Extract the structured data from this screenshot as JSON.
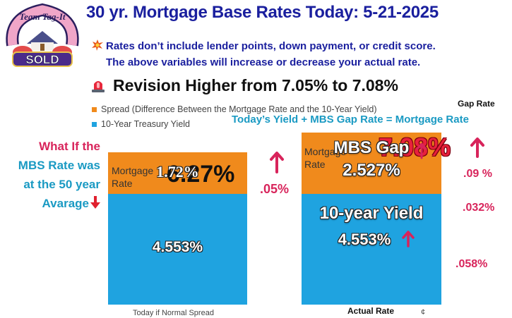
{
  "title": "30 yr. Mortgage Base Rates Today: 5-21-2025",
  "logo": {
    "icon": "team-tag-it-sold-logo",
    "text_top": "Team Tag-It",
    "text_sold": "SOLD"
  },
  "notes": {
    "line1_icon": "burst-icon",
    "line1": "Rates don’t include lender points, down payment, or credit score.",
    "line2": "The above variables will increase or decrease your actual rate."
  },
  "revision": {
    "icon": "siren-icon",
    "text": "Revision Higher from 7.05% to 7.08%"
  },
  "gap_rate_heading": "Gap Rate",
  "formula": "Today’s  Yield +  MBS Gap Rate = Mortgage Rate",
  "what_if": {
    "line1": "What If the",
    "line2": "MBS Rate was",
    "line3": "at the 50 year",
    "line4": "Avarage"
  },
  "colors": {
    "spread": "#f08a1c",
    "yield": "#1fa3e0",
    "accent_red": "#d8245b",
    "title_blue": "#1a1f9e",
    "teal": "#1a9ac3"
  },
  "chart_data": {
    "type": "bar",
    "stacked": true,
    "categories": [
      "Today if Normal Spread",
      "Actual Rate"
    ],
    "series": [
      {
        "name": "10-Year Treasury Yield",
        "values": [
          4.553,
          4.553
        ]
      },
      {
        "name": "Spread (Difference Between the Mortgage Rate and the 10-Year Yield)",
        "values": [
          1.72,
          2.527
        ]
      }
    ],
    "legend": "top-left",
    "grid": false,
    "bars": [
      {
        "header": "Mortgage Rate",
        "total_label": "6.27%",
        "spread_label": "1.72%",
        "yield_label": "4.553%"
      },
      {
        "header": "Mortgage Rate",
        "total_label": "7.08%",
        "spread_title": "MBS Gap",
        "spread_label": "2.527%",
        "yield_title": "10-year Yield",
        "yield_label": "4.553%"
      }
    ],
    "changes": {
      "bar1_total": ".05%",
      "total": ".09 %",
      "gap": ".032%",
      "yield": ".058%"
    },
    "extra_marker": "¢"
  }
}
